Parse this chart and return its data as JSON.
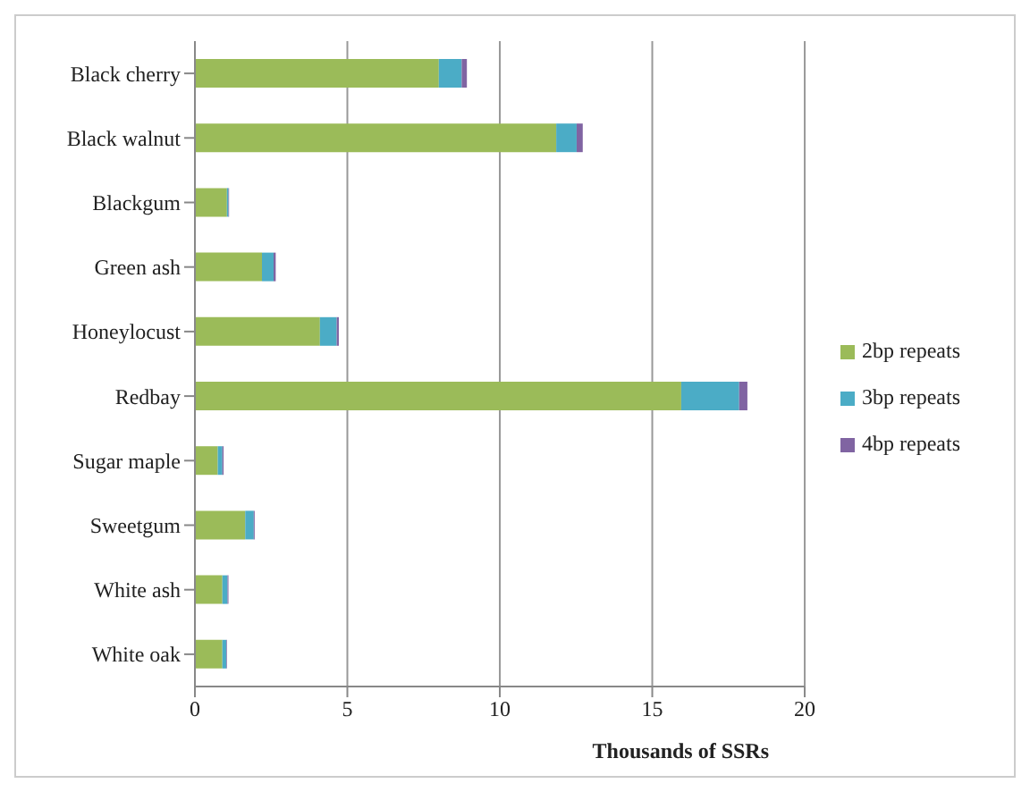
{
  "chart_data": {
    "type": "bar",
    "orientation": "horizontal",
    "stacked": true,
    "xlabel": "Thousands of SSRs",
    "categories": [
      "Black cherry",
      "Black walnut",
      "Blackgum",
      "Green ash",
      "Honeylocust",
      "Redbay",
      "Sugar maple",
      "Sweetgum",
      "White ash",
      "White oak"
    ],
    "series": [
      {
        "name": "2bp repeats",
        "color": "#9bbb59",
        "values": [
          8.0,
          11.85,
          1.05,
          2.2,
          4.1,
          15.95,
          0.75,
          1.65,
          0.9,
          0.9
        ]
      },
      {
        "name": "3bp repeats",
        "color": "#4bacc6",
        "values": [
          0.75,
          0.67,
          0.05,
          0.38,
          0.55,
          1.9,
          0.15,
          0.28,
          0.17,
          0.13
        ]
      },
      {
        "name": "4bp repeats",
        "color": "#8064a2",
        "values": [
          0.17,
          0.2,
          0.02,
          0.07,
          0.07,
          0.27,
          0.04,
          0.03,
          0.03,
          0.02
        ]
      }
    ],
    "xlim": [
      0,
      20
    ],
    "xticks": [
      0,
      5,
      10,
      15,
      20
    ],
    "grid": "x",
    "legend": "right"
  }
}
